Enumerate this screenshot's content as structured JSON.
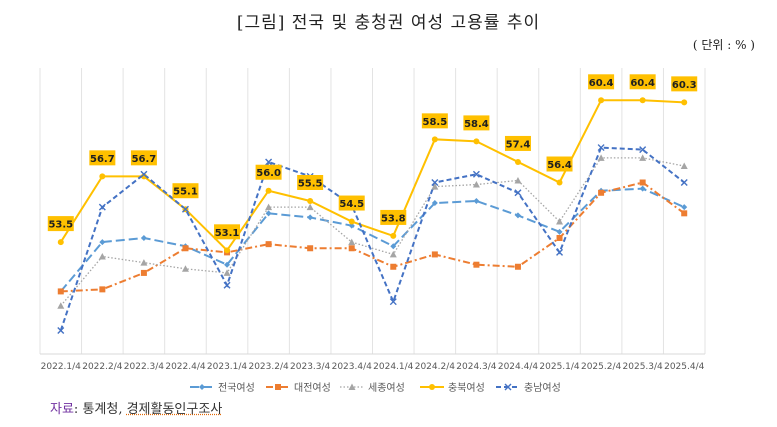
{
  "chart_data": {
    "type": "line",
    "title": "[그림] 전국 및 충청권 여성 고용률 추이",
    "unit_note": "( 단위 : % )",
    "xlabel": "",
    "ylabel": "",
    "ylim": [
      48,
      62
    ],
    "grid": "vertical",
    "legend_position": "bottom",
    "categories": [
      "2022.1/4",
      "2022.2/4",
      "2022.3/4",
      "2022.4/4",
      "2023.1/4",
      "2023.2/4",
      "2023.3/4",
      "2023.4/4",
      "2024.1/4",
      "2024.2/4",
      "2024.3/4",
      "2024.4/4",
      "2025.1/4",
      "2025.2/4",
      "2025.3/4",
      "2025.4/4"
    ],
    "series": [
      {
        "name": "전국여성",
        "color": "#5b9bd5",
        "marker": "diamond",
        "dash": "long-dash",
        "labels": false,
        "values": [
          51.1,
          53.5,
          53.7,
          53.3,
          52.4,
          54.9,
          54.7,
          54.3,
          53.3,
          55.4,
          55.5,
          54.8,
          54.0,
          56.0,
          56.1,
          55.2
        ]
      },
      {
        "name": "대전여성",
        "color": "#ed7d31",
        "marker": "square",
        "dash": "dash-dot",
        "labels": false,
        "values": [
          51.1,
          51.2,
          52.0,
          53.2,
          53.0,
          53.4,
          53.2,
          53.2,
          52.3,
          52.9,
          52.4,
          52.3,
          53.7,
          55.9,
          56.4,
          54.9
        ]
      },
      {
        "name": "세종여성",
        "color": "#a5a5a5",
        "marker": "triangle",
        "dash": "dotted",
        "labels": false,
        "values": [
          50.4,
          52.8,
          52.5,
          52.2,
          52.0,
          55.2,
          55.2,
          53.5,
          52.9,
          56.2,
          56.3,
          56.5,
          54.5,
          57.6,
          57.6,
          57.2
        ]
      },
      {
        "name": "충북여성",
        "color": "#ffc000",
        "marker": "circle",
        "dash": "solid",
        "labels": true,
        "values": [
          53.5,
          56.7,
          56.7,
          55.1,
          53.1,
          56.0,
          55.5,
          54.5,
          53.8,
          58.5,
          58.4,
          57.4,
          56.4,
          60.4,
          60.4,
          60.3
        ]
      },
      {
        "name": "충남여성",
        "color": "#4472c4",
        "marker": "x",
        "dash": "dashed",
        "labels": false,
        "values": [
          49.2,
          55.2,
          56.8,
          55.1,
          51.4,
          57.4,
          56.7,
          55.3,
          50.6,
          56.4,
          56.8,
          55.9,
          53.0,
          58.1,
          58.0,
          56.4
        ]
      }
    ],
    "data_labels": [
      "53.5",
      "56.7",
      "56.7",
      "55.1",
      "53.1",
      "56.0",
      "55.5",
      "54.5",
      "53.8",
      "58.5",
      "58.4",
      "57.4",
      "56.4",
      "60.4",
      "60.4",
      "60.3"
    ]
  },
  "source": {
    "label": "자료",
    "separator": ": ",
    "org": "통계청, ",
    "survey": "경제활동인구조사"
  }
}
